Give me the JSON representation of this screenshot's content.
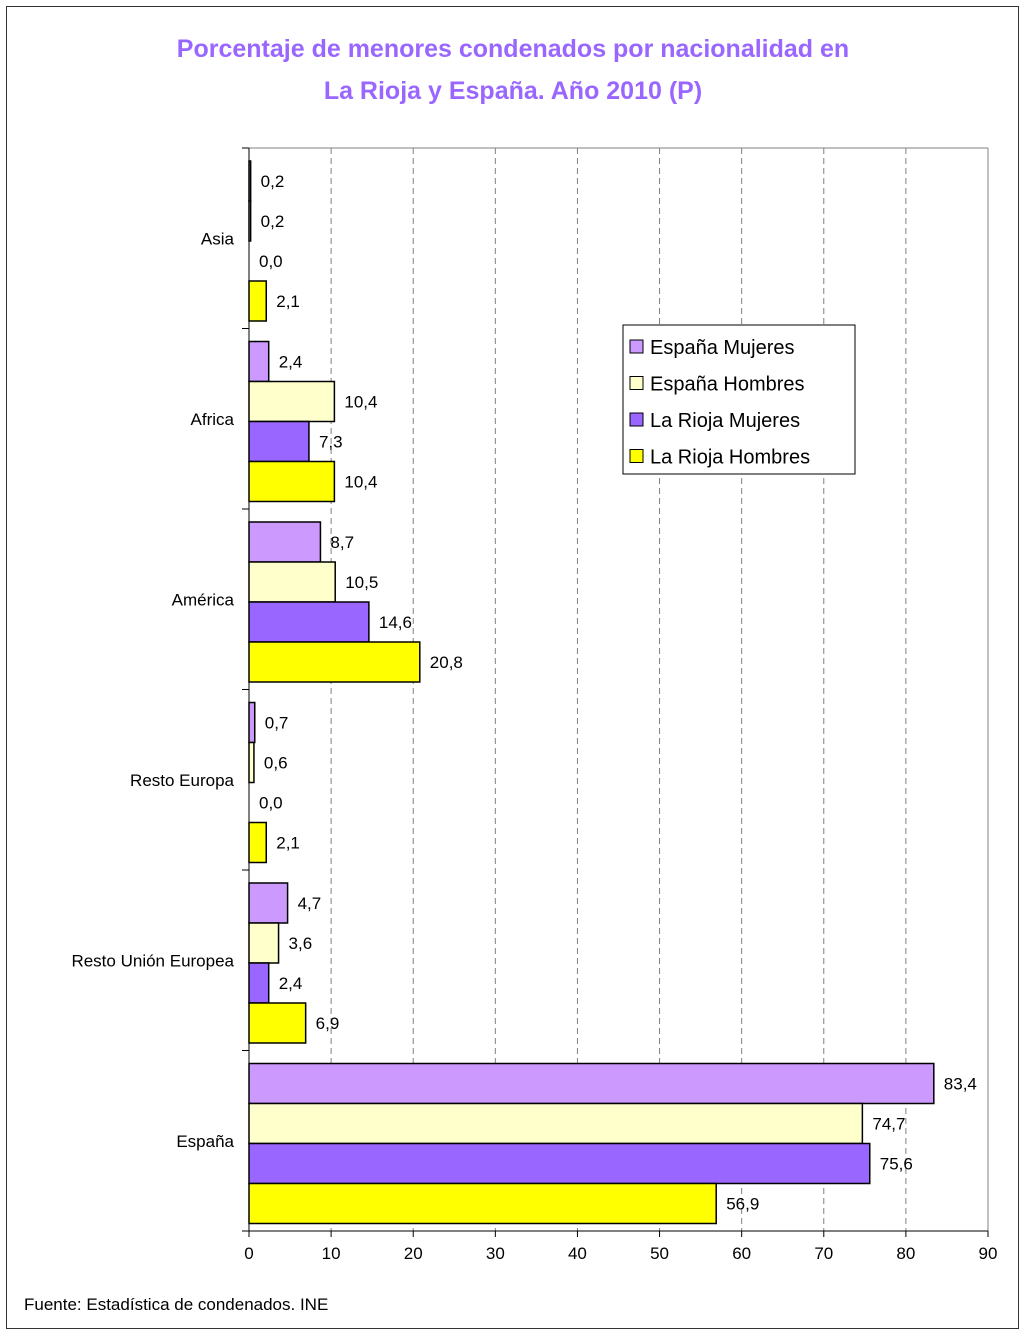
{
  "chart_data": {
    "type": "bar",
    "orientation": "horizontal",
    "title": [
      "Porcentaje de menores condenados por nacionalidad en",
      "La Rioja y España. Año 2010 (P)"
    ],
    "xlabel": "",
    "ylabel": "",
    "xlim": [
      0,
      90
    ],
    "xticks": [
      0,
      10,
      20,
      30,
      40,
      50,
      60,
      70,
      80,
      90
    ],
    "grid": "vertical-dashed",
    "legend_position": "right",
    "categories": [
      "Asia",
      "Africa",
      "América",
      "Resto  Europa",
      "Resto Unión Europea",
      "España"
    ],
    "series": [
      {
        "name": "España Mujeres",
        "color": "#cc99ff",
        "values": [
          0.2,
          2.4,
          8.7,
          0.7,
          4.7,
          83.4
        ],
        "labels": [
          "0,2",
          "2,4",
          "8,7",
          "0,7",
          "4,7",
          "83,4"
        ]
      },
      {
        "name": "España Hombres",
        "color": "#ffffcc",
        "values": [
          0.2,
          10.4,
          10.5,
          0.6,
          3.6,
          74.7
        ],
        "labels": [
          "0,2",
          "10,4",
          "10,5",
          "0,6",
          "3,6",
          "74,7"
        ]
      },
      {
        "name": "La Rioja Mujeres",
        "color": "#9966ff",
        "values": [
          0.0,
          7.3,
          14.6,
          0.0,
          2.4,
          75.6
        ],
        "labels": [
          "0,0",
          "7,3",
          "14,6",
          "0,0",
          "2,4",
          "75,6"
        ]
      },
      {
        "name": "La Rioja Hombres",
        "color": "#ffff00",
        "values": [
          2.1,
          10.4,
          20.8,
          2.1,
          6.9,
          56.9
        ],
        "labels": [
          "2,1",
          "10,4",
          "20,8",
          "2,1",
          "6,9",
          "56,9"
        ]
      }
    ]
  },
  "footer": {
    "source": "Fuente: Estadística de condenados. INE"
  }
}
